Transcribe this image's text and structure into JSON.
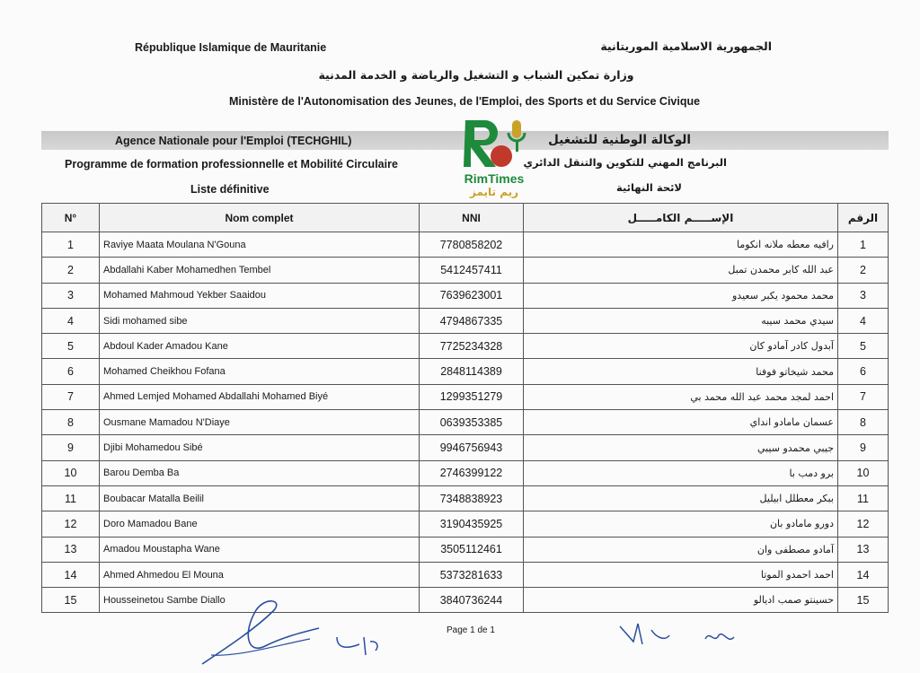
{
  "header": {
    "country_fr": "République Islamique de Mauritanie",
    "country_ar": "الجمهورية الاسلامية الموريتانية",
    "ministry_ar": "وزارة تمكين الشباب و التشغيل والرياضة و الخدمة المدنية",
    "ministry_fr": "Ministère de l'Autonomisation des Jeunes, de l'Emploi, des Sports et du Service Civique",
    "agency_fr": "Agence Nationale pour l'Emploi (TECHGHIL)",
    "agency_ar": "الوكالة الوطنية للتشغيل",
    "program_fr": "Programme de formation professionnelle et Mobilité Circulaire",
    "program_ar": "البرنامج المهني للتكوين والتنقل الدائري",
    "list_fr": "Liste définitive",
    "list_ar": "لائحة النهائية"
  },
  "logo": {
    "name": "RimTimes",
    "name_ar": "ريم تايمز",
    "green": "#1e8a3c",
    "gold": "#c9a227"
  },
  "table": {
    "columns": [
      "N°",
      "Nom complet",
      "NNI",
      "الإســـــم الكامـــــل",
      "الرقم"
    ],
    "rows": [
      {
        "n": "1",
        "name": "Raviye Maata Moulana N'Gouna",
        "nni": "7780858202",
        "name_ar": "رافيه معطه ملانه انكوما"
      },
      {
        "n": "2",
        "name": "Abdallahi Kaber Mohamedhen Tembel",
        "nni": "5412457411",
        "name_ar": "عبد الله كابر محمدن تمبل"
      },
      {
        "n": "3",
        "name": "Mohamed Mahmoud Yekber Saaidou",
        "nni": "7639623001",
        "name_ar": "محمد محمود يكبر سعيدو"
      },
      {
        "n": "4",
        "name": "Sidi mohamed sibe",
        "nni": "4794867335",
        "name_ar": "سيدي محمد سيبه"
      },
      {
        "n": "5",
        "name": "Abdoul Kader Amadou Kane",
        "nni": "7725234328",
        "name_ar": "آبدول كادر آمادو كان"
      },
      {
        "n": "6",
        "name": "Mohamed Cheikhou Fofana",
        "nni": "2848114389",
        "name_ar": "محمد شيخاتو فوفنا"
      },
      {
        "n": "7",
        "name": "Ahmed Lemjed Mohamed Abdallahi Mohamed Biyé",
        "nni": "1299351279",
        "name_ar": "احمد لمجد محمد عبد الله محمد بي"
      },
      {
        "n": "8",
        "name": "Ousmane Mamadou N'Diaye",
        "nni": "0639353385",
        "name_ar": "عسمان مامادو انداي"
      },
      {
        "n": "9",
        "name": "Djibi Mohamedou Sibé",
        "nni": "9946756943",
        "name_ar": "جيبي محمدو سيبي"
      },
      {
        "n": "10",
        "name": "Barou Demba Ba",
        "nni": "2746399122",
        "name_ar": "برو دمب با"
      },
      {
        "n": "11",
        "name": "Boubacar Matalla Beilil",
        "nni": "7348838923",
        "name_ar": "ببكر معطلل ابيليل"
      },
      {
        "n": "12",
        "name": "Doro Mamadou Bane",
        "nni": "3190435925",
        "name_ar": "دورو مامادو بان"
      },
      {
        "n": "13",
        "name": "Amadou Moustapha Wane",
        "nni": "3505112461",
        "name_ar": "آمادو مصطفى وان"
      },
      {
        "n": "14",
        "name": "Ahmed Ahmedou El Mouna",
        "nni": "5373281633",
        "name_ar": "احمد احمدو الموتا"
      },
      {
        "n": "15",
        "name": "Housseinetou Sambe Diallo",
        "nni": "3840736244",
        "name_ar": "حسينتو صمب اديالو"
      }
    ]
  },
  "footer": {
    "page": "Page 1 de 1"
  }
}
